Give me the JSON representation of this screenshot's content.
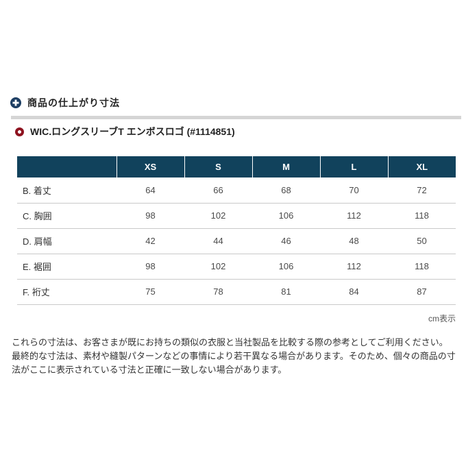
{
  "section_header": {
    "title": "商品の仕上がり寸法"
  },
  "product": {
    "title": "WIC.ロングスリーブT エンボスロゴ (#1114851)"
  },
  "size_table": {
    "columns": [
      "XS",
      "S",
      "M",
      "L",
      "XL"
    ],
    "rows": [
      {
        "label": "B. 着丈",
        "values": [
          "64",
          "66",
          "68",
          "70",
          "72"
        ]
      },
      {
        "label": "C. 胸囲",
        "values": [
          "98",
          "102",
          "106",
          "112",
          "118"
        ]
      },
      {
        "label": "D. 肩幅",
        "values": [
          "42",
          "44",
          "46",
          "48",
          "50"
        ]
      },
      {
        "label": "E. 裾囲",
        "values": [
          "98",
          "102",
          "106",
          "112",
          "118"
        ]
      },
      {
        "label": "F. 裄丈",
        "values": [
          "75",
          "78",
          "81",
          "84",
          "87"
        ]
      }
    ],
    "unit_note": "cm表示"
  },
  "footer_note": {
    "line1": "これらの寸法は、お客さまが既にお持ちの類似の衣服と当社製品を比較する際の参考としてご利用ください。",
    "line2": "最終的な寸法は、素材や縫製パターンなどの事情により若干異なる場合があります。そのため、個々の商品の寸法がここに表示されている寸法と正確に一致しない場合があります。"
  },
  "colors": {
    "table_header_bg": "#11425c",
    "header_icon_navy": "#1d3e63",
    "product_icon_red": "#8e1320",
    "divider_gray": "#d5d5d5",
    "row_border": "#c9c9c9"
  }
}
